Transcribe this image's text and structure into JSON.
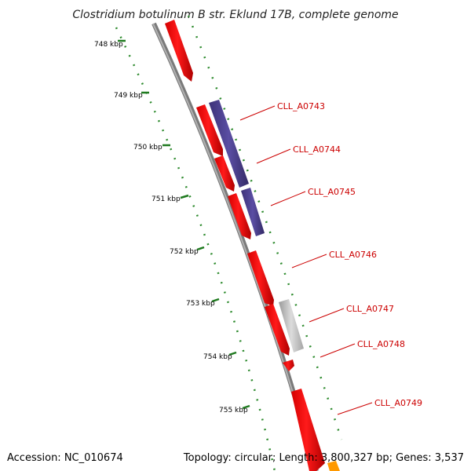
{
  "title": "Clostridium botulinum B str. Eklund 17B, complete genome",
  "footer": {
    "accession": "Accession: NC_010674",
    "topology": "Topology: circular; Length: 3,800,327 bp; Genes: 3,537"
  },
  "ticks": [
    "748 kbp",
    "749 kbp",
    "750 kbp",
    "751 kbp",
    "752 kbp",
    "753 kbp",
    "754 kbp",
    "755 kbp"
  ],
  "genes": [
    "CLL_A0743",
    "CLL_A0744",
    "CLL_A0745",
    "CLL_A0746",
    "CLL_A0747",
    "CLL_A0748",
    "CLL_A0749"
  ],
  "colors": {
    "cds": "#ff0000",
    "cds_dark": "#b00000",
    "blast_purple": "#4b3f8f",
    "blast_gray": "#b8b8b8",
    "backbone": "#808080",
    "dots": "#2e8b2e",
    "label": "#cc0000",
    "orange": "#ff9900"
  }
}
